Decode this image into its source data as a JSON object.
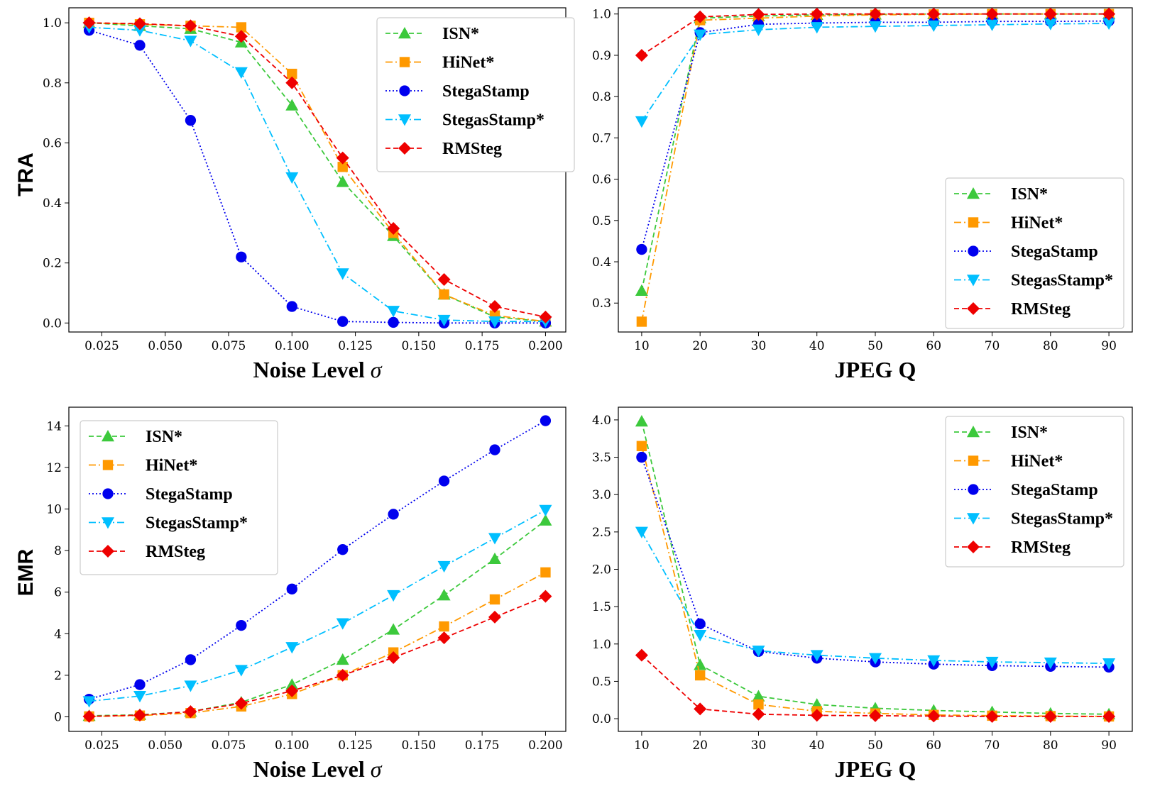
{
  "figure": {
    "row_labels": [
      "TRA",
      "EMR"
    ]
  },
  "colors": {
    "ISN*": "#3cc93c",
    "HiNet*": "#ff9900",
    "StegaStamp": "#0000ee",
    "StegasStamp*": "#00bfff",
    "RMSteg": "#ee0000"
  },
  "chart_data": [
    {
      "id": "tra-noise",
      "type": "line",
      "title": "",
      "xlabel": "Noise Level",
      "xlabel_symbol": "σ",
      "ylabel": "",
      "xlim": [
        0.012,
        0.208
      ],
      "ylim": [
        -0.03,
        1.05
      ],
      "xticks": [
        0.025,
        0.05,
        0.075,
        0.1,
        0.125,
        0.15,
        0.175,
        0.2
      ],
      "xticklabels": [
        "0.025",
        "0.050",
        "0.075",
        "0.100",
        "0.125",
        "0.150",
        "0.175",
        "0.200"
      ],
      "yticks": [
        0,
        0.2,
        0.4,
        0.6,
        0.8,
        1.0
      ],
      "yticklabels": [
        "0.0",
        "0.2",
        "0.4",
        "0.6",
        "0.8",
        "1.0"
      ],
      "legend": "top-right",
      "x": [
        0.02,
        0.04,
        0.06,
        0.08,
        0.1,
        0.12,
        0.14,
        0.16,
        0.18,
        0.2
      ],
      "series": [
        {
          "name": "ISN*",
          "values": [
            1.0,
            0.99,
            0.98,
            0.935,
            0.725,
            0.47,
            0.29,
            0.095,
            0.02,
            0.005
          ]
        },
        {
          "name": "HiNet*",
          "values": [
            1.0,
            0.995,
            0.99,
            0.985,
            0.83,
            0.52,
            0.3,
            0.095,
            0.025,
            0.005
          ]
        },
        {
          "name": "StegaStamp",
          "values": [
            0.975,
            0.925,
            0.675,
            0.22,
            0.055,
            0.005,
            0.002,
            0.0,
            0.0,
            0.0
          ]
        },
        {
          "name": "StegasStamp*",
          "values": [
            0.985,
            0.975,
            0.94,
            0.835,
            0.485,
            0.165,
            0.04,
            0.01,
            0.005,
            0.005
          ]
        },
        {
          "name": "RMSteg",
          "values": [
            1.0,
            0.997,
            0.99,
            0.955,
            0.8,
            0.55,
            0.315,
            0.145,
            0.055,
            0.02
          ]
        }
      ]
    },
    {
      "id": "tra-jpeg",
      "type": "line",
      "title": "",
      "xlabel": "JPEG Q",
      "xlabel_symbol": "",
      "ylabel": "",
      "xlim": [
        6,
        94
      ],
      "ylim": [
        0.23,
        1.015
      ],
      "xticks": [
        10,
        20,
        30,
        40,
        50,
        60,
        70,
        80,
        90
      ],
      "xticklabels": [
        "10",
        "20",
        "30",
        "40",
        "50",
        "60",
        "70",
        "80",
        "90"
      ],
      "yticks": [
        0.3,
        0.4,
        0.5,
        0.6,
        0.7,
        0.8,
        0.9,
        1.0
      ],
      "yticklabels": [
        "0.3",
        "0.4",
        "0.5",
        "0.6",
        "0.7",
        "0.8",
        "0.9",
        "1.0"
      ],
      "legend": "lower-right",
      "x": [
        10,
        20,
        30,
        40,
        50,
        60,
        70,
        80,
        90
      ],
      "series": [
        {
          "name": "ISN*",
          "values": [
            0.33,
            0.99,
            0.995,
            0.998,
            0.999,
            1.0,
            1.0,
            1.0,
            1.0
          ]
        },
        {
          "name": "HiNet*",
          "values": [
            0.255,
            0.985,
            0.99,
            0.995,
            0.998,
            0.999,
            1.0,
            1.0,
            1.0
          ]
        },
        {
          "name": "StegaStamp",
          "values": [
            0.43,
            0.955,
            0.975,
            0.978,
            0.98,
            0.98,
            0.982,
            0.982,
            0.983
          ]
        },
        {
          "name": "StegasStamp*",
          "values": [
            0.74,
            0.95,
            0.962,
            0.968,
            0.97,
            0.972,
            0.974,
            0.976,
            0.977
          ]
        },
        {
          "name": "RMSteg",
          "values": [
            0.9,
            0.993,
            0.999,
            1.0,
            1.0,
            1.0,
            1.0,
            1.0,
            1.0
          ]
        }
      ]
    },
    {
      "id": "emr-noise",
      "type": "line",
      "title": "",
      "xlabel": "Noise Level",
      "xlabel_symbol": "σ",
      "ylabel": "",
      "xlim": [
        0.012,
        0.208
      ],
      "ylim": [
        -0.7,
        14.9
      ],
      "xticks": [
        0.025,
        0.05,
        0.075,
        0.1,
        0.125,
        0.15,
        0.175,
        0.2
      ],
      "xticklabels": [
        "0.025",
        "0.050",
        "0.075",
        "0.100",
        "0.125",
        "0.150",
        "0.175",
        "0.200"
      ],
      "yticks": [
        0,
        2,
        4,
        6,
        8,
        10,
        12,
        14
      ],
      "yticklabels": [
        "0",
        "2",
        "4",
        "6",
        "8",
        "10",
        "12",
        "14"
      ],
      "legend": "top-left",
      "x": [
        0.02,
        0.04,
        0.06,
        0.08,
        0.1,
        0.12,
        0.14,
        0.16,
        0.18,
        0.2
      ],
      "series": [
        {
          "name": "ISN*",
          "values": [
            0.05,
            0.1,
            0.25,
            0.7,
            1.55,
            2.75,
            4.2,
            5.85,
            7.6,
            9.45
          ]
        },
        {
          "name": "HiNet*",
          "values": [
            0.02,
            0.06,
            0.18,
            0.5,
            1.1,
            2.0,
            3.1,
            4.35,
            5.65,
            6.95
          ]
        },
        {
          "name": "StegaStamp",
          "values": [
            0.85,
            1.55,
            2.75,
            4.4,
            6.15,
            8.05,
            9.75,
            11.35,
            12.85,
            14.25
          ]
        },
        {
          "name": "StegasStamp*",
          "values": [
            0.75,
            1.0,
            1.5,
            2.25,
            3.35,
            4.5,
            5.85,
            7.25,
            8.6,
            9.95
          ]
        },
        {
          "name": "RMSteg",
          "values": [
            0.02,
            0.08,
            0.25,
            0.65,
            1.25,
            2.0,
            2.85,
            3.8,
            4.8,
            5.8
          ]
        }
      ]
    },
    {
      "id": "emr-jpeg",
      "type": "line",
      "title": "",
      "xlabel": "JPEG Q",
      "xlabel_symbol": "",
      "ylabel": "",
      "xlim": [
        6,
        94
      ],
      "ylim": [
        -0.17,
        4.17
      ],
      "xticks": [
        10,
        20,
        30,
        40,
        50,
        60,
        70,
        80,
        90
      ],
      "xticklabels": [
        "10",
        "20",
        "30",
        "40",
        "50",
        "60",
        "70",
        "80",
        "90"
      ],
      "yticks": [
        0,
        0.5,
        1.0,
        1.5,
        2.0,
        2.5,
        3.0,
        3.5,
        4.0
      ],
      "yticklabels": [
        "0.0",
        "0.5",
        "1.0",
        "1.5",
        "2.0",
        "2.5",
        "3.0",
        "3.5",
        "4.0"
      ],
      "legend": "top-right",
      "x": [
        10,
        20,
        30,
        40,
        50,
        60,
        70,
        80,
        90
      ],
      "series": [
        {
          "name": "ISN*",
          "values": [
            3.98,
            0.72,
            0.3,
            0.19,
            0.14,
            0.11,
            0.09,
            0.07,
            0.06
          ]
        },
        {
          "name": "HiNet*",
          "values": [
            3.65,
            0.58,
            0.19,
            0.1,
            0.07,
            0.05,
            0.04,
            0.035,
            0.03
          ]
        },
        {
          "name": "StegaStamp",
          "values": [
            3.5,
            1.27,
            0.9,
            0.81,
            0.76,
            0.73,
            0.71,
            0.7,
            0.69
          ]
        },
        {
          "name": "StegasStamp*",
          "values": [
            2.5,
            1.12,
            0.91,
            0.85,
            0.81,
            0.78,
            0.76,
            0.75,
            0.74
          ]
        },
        {
          "name": "RMSteg",
          "values": [
            0.85,
            0.13,
            0.06,
            0.045,
            0.04,
            0.035,
            0.03,
            0.03,
            0.03
          ]
        }
      ]
    }
  ]
}
